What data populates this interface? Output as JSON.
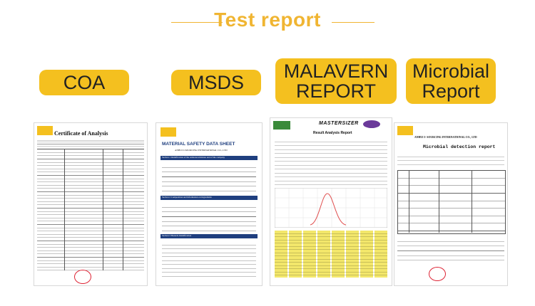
{
  "header": {
    "title": "Test report"
  },
  "tabs": [
    {
      "label": "COA"
    },
    {
      "label": "MSDS"
    },
    {
      "label_line1": "MALAVERN",
      "label_line2": "REPORT"
    },
    {
      "label_line1": "Microbial",
      "label_line2": "Report"
    }
  ],
  "docs": {
    "coa": {
      "title": "Certificate of Analysis",
      "company": "ANHUI I-SOURCING INTERNATIONAL CO., LTD"
    },
    "msds": {
      "title": "MATERIAL SAFETY DATA SHEET",
      "company": "ANHUI I-SOURCING INTERNATIONAL CO., LTD",
      "section1": "Section 1 Identification of the substance/mixture and of the company",
      "section2": "Section 2 Composition and Information on Ingredients",
      "section3": "Section 3 Hazards Identification"
    },
    "malvern": {
      "brand": "MASTERSIZER",
      "title": "Result Analysis Report"
    },
    "micro": {
      "company": "ANHUI I- SOURCING INTERNATIONAL CO., LTD",
      "title": "Microbial detection report"
    }
  },
  "colors": {
    "accent": "#f4c01f",
    "title": "#f0b532",
    "msds_section": "#1f3f7f"
  }
}
